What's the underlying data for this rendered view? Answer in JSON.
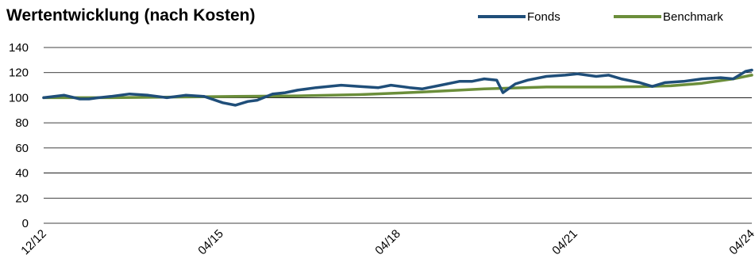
{
  "title": "Wertentwicklung (nach Kosten)",
  "chart_data": {
    "type": "line",
    "title": "Wertentwicklung (nach Kosten)",
    "xlabel": "",
    "ylabel": "",
    "x_ticks": [
      "12/12",
      "04/15",
      "04/18",
      "04/21",
      "04/24"
    ],
    "x_range": [
      2012.92,
      2024.3
    ],
    "ylim": [
      0,
      140
    ],
    "y_ticks": [
      0,
      20,
      40,
      60,
      80,
      100,
      120,
      140
    ],
    "grid": "horizontal",
    "legend_position": "top-right",
    "series": [
      {
        "name": "Fonds",
        "color": "#1f4e79",
        "x": [
          2012.92,
          2013.25,
          2013.5,
          2013.65,
          2013.8,
          2014.0,
          2014.3,
          2014.6,
          2014.9,
          2015.2,
          2015.5,
          2015.8,
          2016.0,
          2016.2,
          2016.35,
          2016.6,
          2016.8,
          2017.0,
          2017.3,
          2017.7,
          2018.0,
          2018.3,
          2018.5,
          2018.8,
          2019.0,
          2019.3,
          2019.6,
          2019.8,
          2020.0,
          2020.2,
          2020.3,
          2020.5,
          2020.7,
          2021.0,
          2021.3,
          2021.5,
          2021.8,
          2022.0,
          2022.2,
          2022.5,
          2022.7,
          2022.9,
          2023.2,
          2023.5,
          2023.8,
          2024.0,
          2024.2,
          2024.3
        ],
        "y": [
          100,
          102,
          99,
          99,
          100,
          101,
          103,
          102,
          100,
          102,
          101,
          96,
          94,
          97,
          98,
          103,
          104,
          106,
          108,
          110,
          109,
          108,
          110,
          108,
          107,
          110,
          113,
          113,
          115,
          114,
          104,
          111,
          114,
          117,
          118,
          119,
          117,
          118,
          115,
          112,
          109,
          112,
          113,
          115,
          116,
          115,
          121,
          122
        ]
      },
      {
        "name": "Benchmark",
        "color": "#6b8e3a",
        "x": [
          2012.92,
          2014.0,
          2015.0,
          2016.0,
          2017.0,
          2018.0,
          2019.0,
          2020.0,
          2021.0,
          2022.0,
          2022.5,
          2023.0,
          2023.5,
          2024.0,
          2024.3
        ],
        "y": [
          100,
          100,
          100.5,
          101,
          101.5,
          102.5,
          104.5,
          107,
          108.5,
          108.5,
          108.8,
          109.5,
          111.5,
          115,
          118
        ]
      }
    ]
  }
}
